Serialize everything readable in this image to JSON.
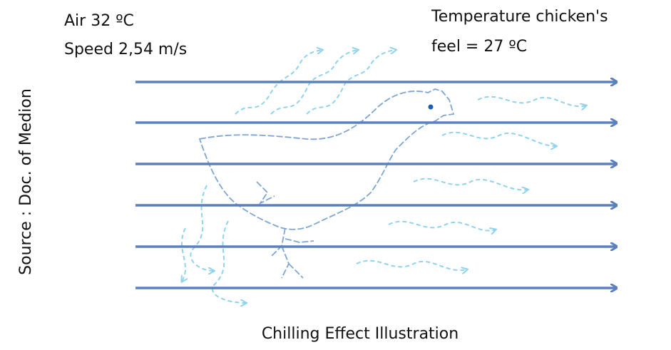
{
  "annotations": {
    "air_temperature": "Air 32 ºC",
    "air_speed": "Speed 2,54 m/s",
    "felt_temperature_line1": "Temperature chicken's",
    "felt_temperature_line2": "feel = 27 ºC"
  },
  "source": "Source : Doc. of Medion",
  "caption": "Chilling Effect Illustration"
}
